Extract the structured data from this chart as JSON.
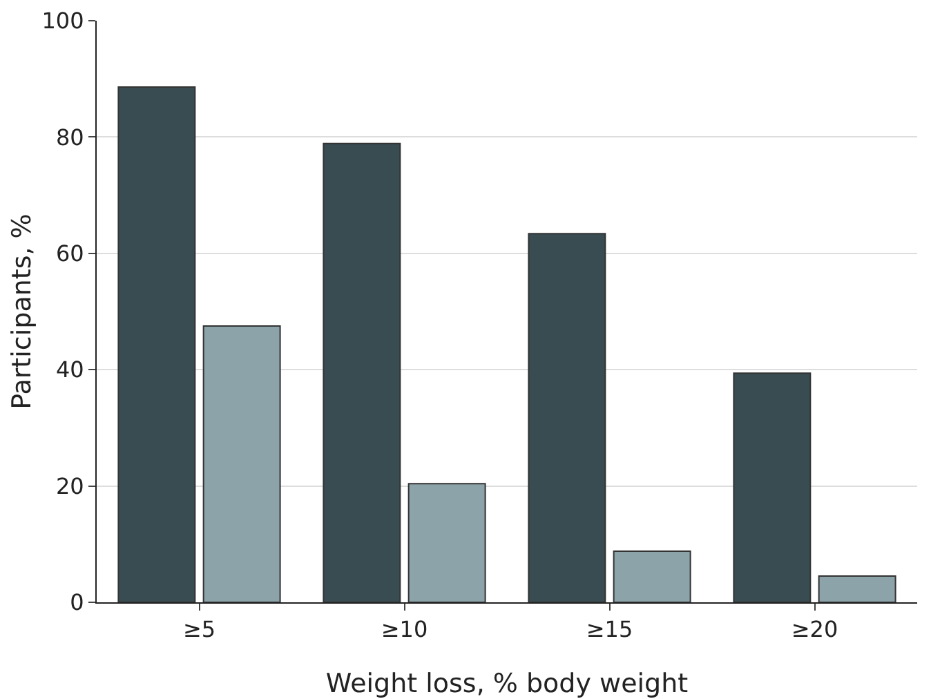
{
  "chart_data": {
    "type": "bar",
    "xlabel": "Weight loss, % body weight",
    "ylabel": "Participants, %",
    "categories": [
      "≥5",
      "≥10",
      "≥15",
      "≥20"
    ],
    "series": [
      {
        "color": "#384c52",
        "values": [
          88.6,
          78.9,
          63.4,
          39.4
        ]
      },
      {
        "color": "#8ca3aa",
        "values": [
          47.5,
          20.4,
          8.8,
          4.5
        ]
      }
    ],
    "ylim": [
      0,
      100
    ],
    "yticks": [
      0,
      20,
      40,
      60,
      80,
      100
    ],
    "grid": "y"
  }
}
